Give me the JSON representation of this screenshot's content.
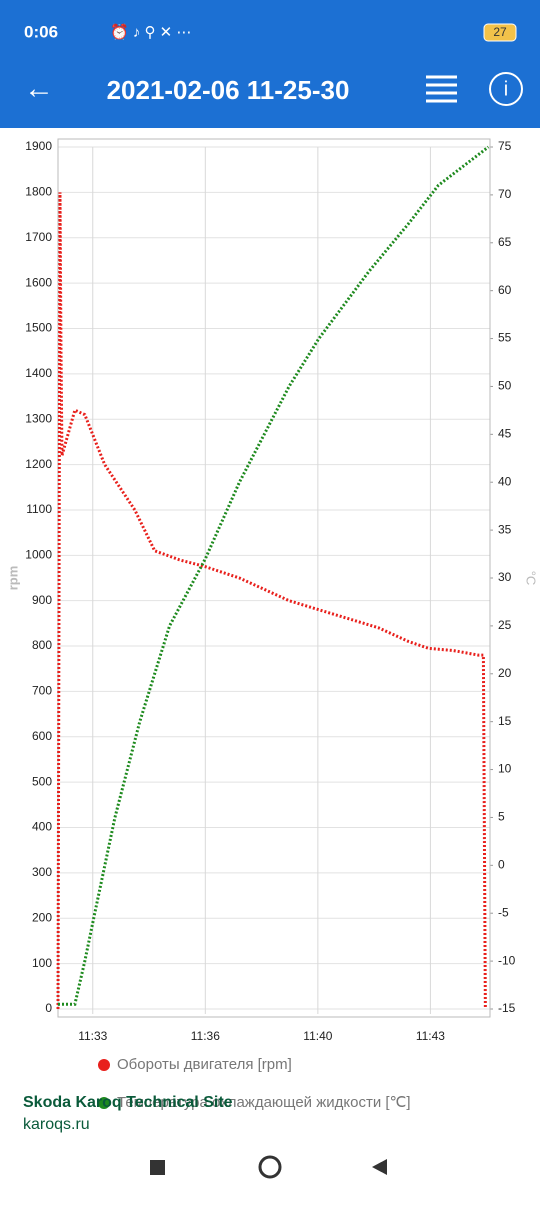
{
  "ui": {
    "status_time": "0:06",
    "battery": "27",
    "title": "2021-02-06 11-25-30",
    "watermark_title": "Skoda Karoq Technical Site",
    "watermark_url": "karoqs.ru"
  },
  "chart_data": {
    "type": "line",
    "y_label": "rpm",
    "y2_label": "°C",
    "xlim": [
      691.95,
      705
    ],
    "xticks": [
      {
        "value": 693,
        "label": "11:33"
      },
      {
        "value": 696.4,
        "label": "11:36"
      },
      {
        "value": 699.8,
        "label": "11:40"
      },
      {
        "value": 703.2,
        "label": "11:43"
      }
    ],
    "ylim": [
      0,
      1900
    ],
    "yticks": [
      0,
      100,
      200,
      300,
      400,
      500,
      600,
      700,
      800,
      900,
      1000,
      1100,
      1200,
      1300,
      1400,
      1500,
      1600,
      1700,
      1800,
      1900
    ],
    "y2lim": [
      -15,
      75
    ],
    "y2ticks": [
      -15,
      -10,
      -5,
      0,
      5,
      10,
      15,
      20,
      25,
      30,
      35,
      40,
      45,
      50,
      55,
      60,
      65,
      70,
      75
    ],
    "grid": true,
    "series": [
      {
        "name": "Обороты двигателя [rpm]",
        "color": "#e8201c",
        "x": [
          691.95,
          692.01,
          692.04,
          692.07,
          692.46,
          692.76,
          693.36,
          694.27,
          694.87,
          695.62,
          696.4,
          697.43,
          698.33,
          698.93,
          699.83,
          700.74,
          701.64,
          702.54,
          703.14,
          703.9,
          704.65,
          704.8,
          704.86
        ],
        "values": [
          0,
          1800,
          1450,
          1220,
          1320,
          1310,
          1200,
          1100,
          1010,
          990,
          975,
          950,
          920,
          900,
          880,
          860,
          840,
          810,
          795,
          790,
          780,
          780,
          0
        ]
      },
      {
        "name": "Температура охлаждающей жидкости [℃]",
        "color": "#1e8a1e",
        "axis": "y2",
        "x": [
          691.95,
          692.46,
          692.76,
          693.06,
          693.67,
          694.42,
          695.32,
          696.4,
          697.43,
          698.93,
          699.83,
          701.34,
          702.54,
          703.44,
          704.95
        ],
        "values": [
          -14.5,
          -14.5,
          -10,
          -5,
          5,
          15,
          25,
          32,
          40,
          50,
          55,
          62,
          67,
          71,
          75
        ]
      }
    ]
  }
}
